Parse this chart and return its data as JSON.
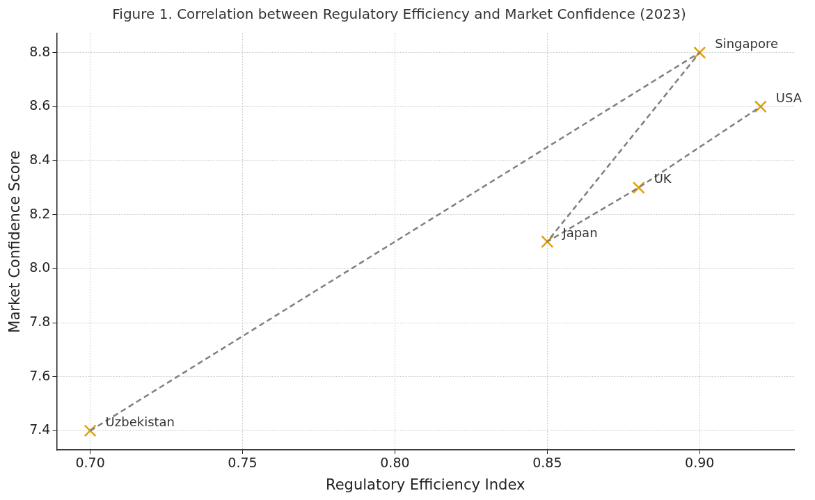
{
  "chart_data": {
    "type": "scatter",
    "title": "Figure 1. Correlation between Regulatory Efficiency and Market Confidence (2023)",
    "xlabel": "Regulatory Efficiency Index",
    "ylabel": "Market Confidence Score",
    "series": [
      {
        "type": "line",
        "color": "#808080",
        "line_style": "dashed",
        "marker": "none",
        "x": [
          0.7,
          0.9,
          0.85,
          0.88,
          0.92
        ],
        "values": [
          7.4,
          8.8,
          8.1,
          8.3,
          8.6
        ]
      },
      {
        "type": "scatter",
        "color": "#e69f00",
        "marker": "cross",
        "x": [
          0.7,
          0.9,
          0.85,
          0.88,
          0.92
        ],
        "values": [
          7.4,
          8.8,
          8.1,
          8.3,
          8.6
        ]
      }
    ],
    "annotations": [
      {
        "text": "Uzbekistan",
        "x": 0.7,
        "y": 7.4
      },
      {
        "text": "Singapore",
        "x": 0.9,
        "y": 8.8
      },
      {
        "text": "Japan",
        "x": 0.85,
        "y": 8.1
      },
      {
        "text": "UK",
        "x": 0.88,
        "y": 8.3
      },
      {
        "text": "USA",
        "x": 0.92,
        "y": 8.6
      }
    ],
    "xlim": [
      0.689,
      0.931
    ],
    "ylim": [
      7.329,
      8.871
    ],
    "xticks": [
      {
        "value": 0.7,
        "label": "0.70"
      },
      {
        "value": 0.75,
        "label": "0.75"
      },
      {
        "value": 0.8,
        "label": "0.80"
      },
      {
        "value": 0.85,
        "label": "0.85"
      },
      {
        "value": 0.9,
        "label": "0.90"
      }
    ],
    "yticks": [
      {
        "value": 7.4,
        "label": "7.4"
      },
      {
        "value": 7.6,
        "label": "7.6"
      },
      {
        "value": 7.8,
        "label": "7.8"
      },
      {
        "value": 8.0,
        "label": "8.0"
      },
      {
        "value": 8.2,
        "label": "8.2"
      },
      {
        "value": 8.4,
        "label": "8.4"
      },
      {
        "value": 8.6,
        "label": "8.6"
      },
      {
        "value": 8.8,
        "label": "8.8"
      }
    ],
    "grid": true,
    "legend": false
  }
}
